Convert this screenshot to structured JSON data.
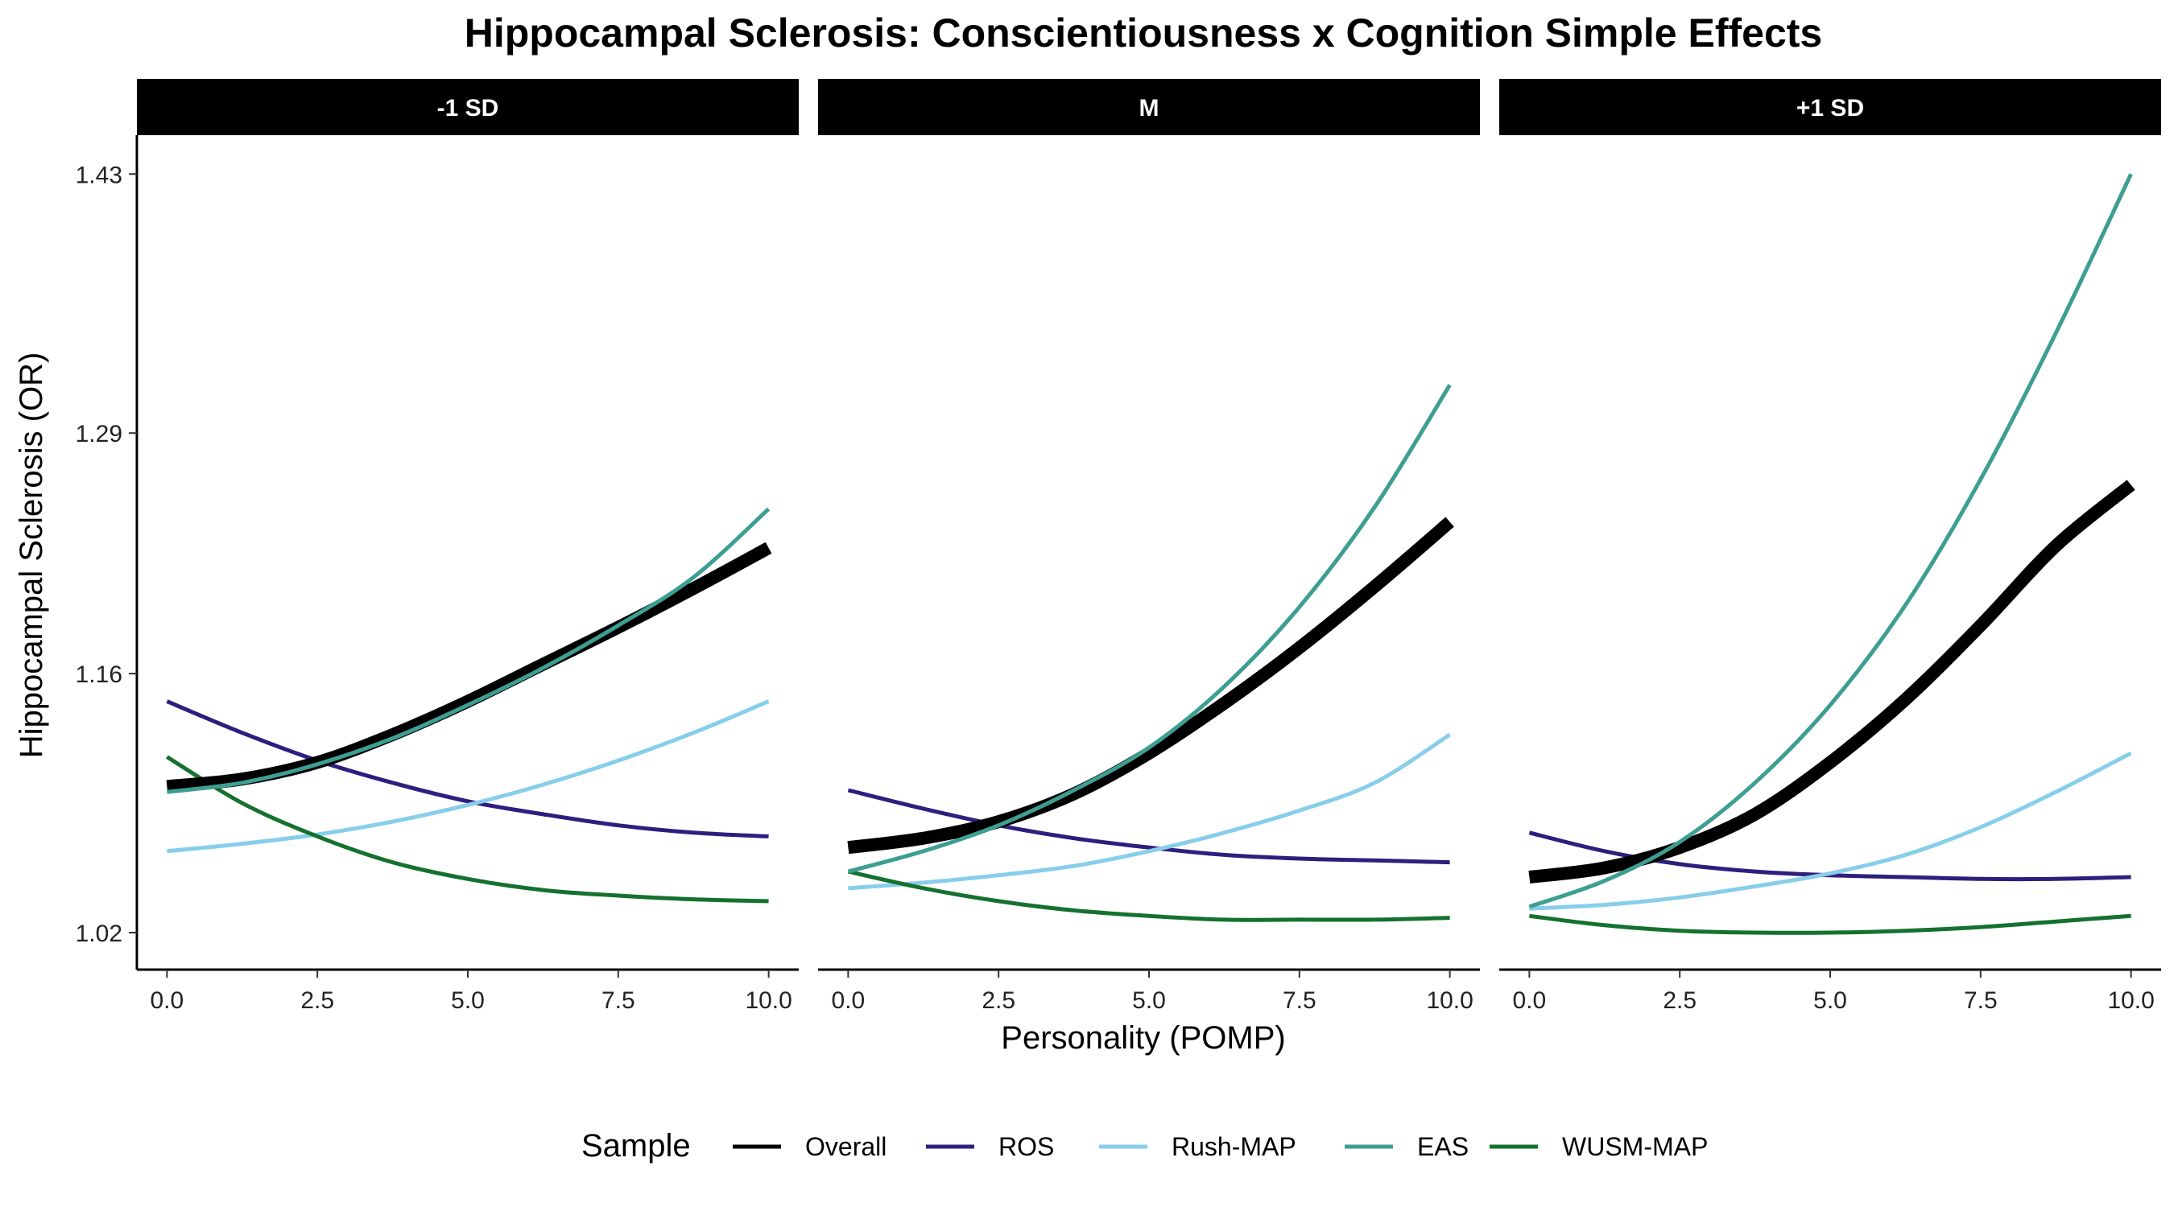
{
  "chart_data": {
    "type": "line",
    "title": "Hippocampal Sclerosis: Conscientiousness x Cognition Simple Effects",
    "xlabel": "Personality (POMP)",
    "ylabel": "Hippocampal Sclerosis (OR)",
    "xlim": [
      -0.5,
      10.5
    ],
    "ylim": [
      1.0,
      1.451
    ],
    "x_ticks": [
      0,
      2.5,
      5,
      7.5,
      10
    ],
    "x_tick_labels": [
      "0.0",
      "2.5",
      "5.0",
      "7.5",
      "10.0"
    ],
    "y_ticks": [
      1.02,
      1.16,
      1.29,
      1.43
    ],
    "y_tick_labels": [
      "1.02",
      "1.16",
      "1.29",
      "1.43"
    ],
    "x": [
      0,
      1.25,
      2.5,
      3.75,
      5,
      6.25,
      7.5,
      8.75,
      10
    ],
    "legend": {
      "title": "Sample",
      "position": "bottom",
      "entries": [
        "Overall",
        "ROS",
        "Rush-MAP",
        "EAS",
        "WUSM-MAP"
      ]
    },
    "colors": {
      "Overall": "#000000",
      "ROS": "#2d1f7e",
      "Rush-MAP": "#87ceeb",
      "EAS": "#3d9e92",
      "WUSM-MAP": "#15712e"
    },
    "panels": [
      {
        "label": "-1 SD",
        "series": [
          {
            "name": "Overall",
            "values": [
              1.099,
              1.103,
              1.112,
              1.127,
              1.145,
              1.165,
              1.185,
              1.206,
              1.228
            ]
          },
          {
            "name": "ROS",
            "values": [
              1.145,
              1.128,
              1.113,
              1.101,
              1.091,
              1.084,
              1.078,
              1.074,
              1.072
            ]
          },
          {
            "name": "Rush-MAP",
            "values": [
              1.064,
              1.068,
              1.073,
              1.08,
              1.089,
              1.1,
              1.113,
              1.128,
              1.145
            ]
          },
          {
            "name": "EAS",
            "values": [
              1.096,
              1.101,
              1.111,
              1.125,
              1.143,
              1.163,
              1.186,
              1.212,
              1.249
            ]
          },
          {
            "name": "WUSM-MAP",
            "values": [
              1.115,
              1.09,
              1.072,
              1.058,
              1.049,
              1.043,
              1.04,
              1.038,
              1.037
            ]
          }
        ]
      },
      {
        "label": "M",
        "series": [
          {
            "name": "Overall",
            "values": [
              1.066,
              1.071,
              1.08,
              1.095,
              1.117,
              1.144,
              1.174,
              1.207,
              1.242
            ]
          },
          {
            "name": "ROS",
            "values": [
              1.097,
              1.087,
              1.078,
              1.071,
              1.066,
              1.062,
              1.06,
              1.059,
              1.058
            ]
          },
          {
            "name": "Rush-MAP",
            "values": [
              1.044,
              1.047,
              1.051,
              1.056,
              1.064,
              1.074,
              1.086,
              1.101,
              1.127
            ]
          },
          {
            "name": "EAS",
            "values": [
              1.053,
              1.064,
              1.078,
              1.097,
              1.12,
              1.153,
              1.196,
              1.25,
              1.316
            ]
          },
          {
            "name": "WUSM-MAP",
            "values": [
              1.053,
              1.044,
              1.037,
              1.032,
              1.029,
              1.027,
              1.027,
              1.027,
              1.028
            ]
          }
        ]
      },
      {
        "label": "+1 SD",
        "series": [
          {
            "name": "Overall",
            "values": [
              1.05,
              1.055,
              1.066,
              1.084,
              1.112,
              1.146,
              1.186,
              1.229,
              1.262
            ]
          },
          {
            "name": "ROS",
            "values": [
              1.074,
              1.064,
              1.057,
              1.053,
              1.051,
              1.05,
              1.049,
              1.049,
              1.05
            ]
          },
          {
            "name": "Rush-MAP",
            "values": [
              1.033,
              1.035,
              1.039,
              1.045,
              1.052,
              1.062,
              1.077,
              1.096,
              1.117
            ]
          },
          {
            "name": "EAS",
            "values": [
              1.034,
              1.048,
              1.069,
              1.101,
              1.143,
              1.197,
              1.265,
              1.344,
              1.43
            ]
          },
          {
            "name": "WUSM-MAP",
            "values": [
              1.029,
              1.024,
              1.021,
              1.02,
              1.02,
              1.021,
              1.023,
              1.026,
              1.029
            ]
          }
        ]
      }
    ]
  }
}
